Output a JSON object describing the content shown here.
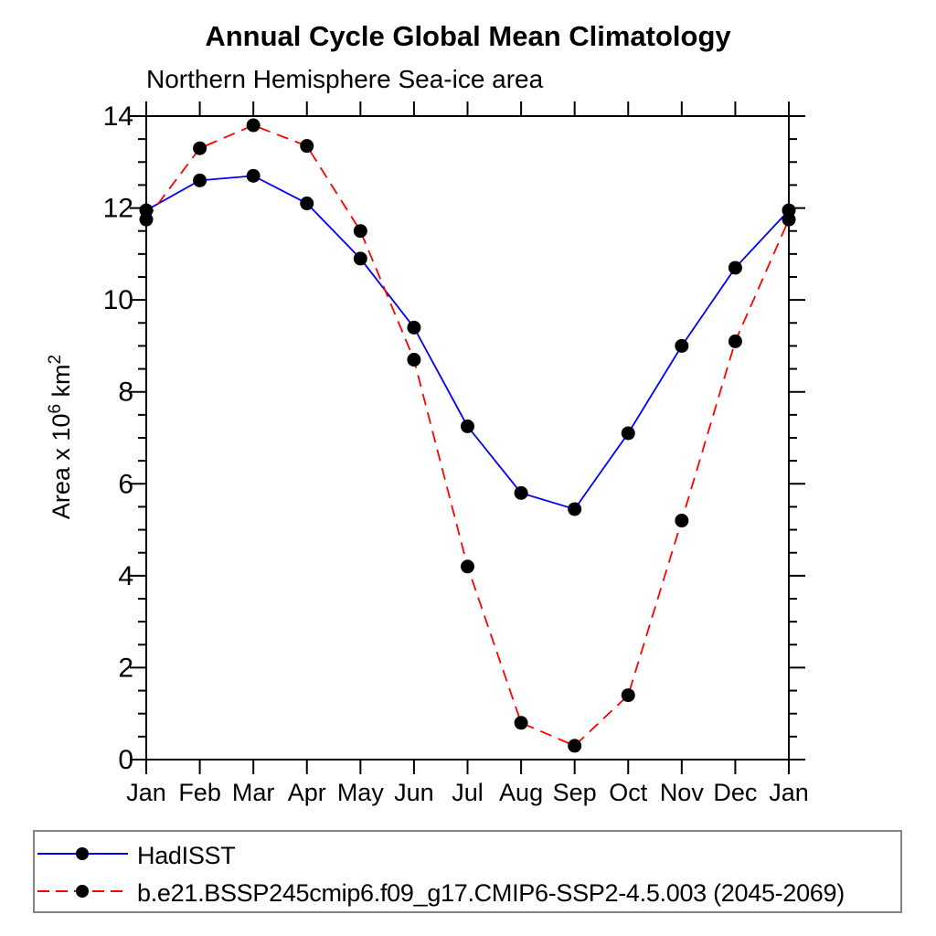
{
  "header": {
    "title": "Annual Cycle Global Mean Climatology",
    "subtitle": "Northern Hemisphere Sea-ice area"
  },
  "chart_data": {
    "type": "line",
    "title": "Annual Cycle Global Mean Climatology",
    "subtitle": "Northern Hemisphere Sea-ice area",
    "categories": [
      "Jan",
      "Feb",
      "Mar",
      "Apr",
      "May",
      "Jun",
      "Jul",
      "Aug",
      "Sep",
      "Oct",
      "Nov",
      "Dec",
      "Jan"
    ],
    "series": [
      {
        "slug": "hadisst",
        "name": "HadISST",
        "color": "#0000ff",
        "style": "solid",
        "values": [
          11.95,
          12.6,
          12.7,
          12.1,
          10.9,
          9.4,
          7.25,
          5.8,
          5.45,
          7.1,
          9.0,
          10.7,
          11.95
        ]
      },
      {
        "slug": "ssp245-model",
        "name": "b.e21.BSSP245cmip6.f09_g17.CMIP6-SSP2-4.5.003 (2045-2069)",
        "color": "#ff0000",
        "style": "dashed",
        "values": [
          11.75,
          13.3,
          13.8,
          13.35,
          11.5,
          8.7,
          4.2,
          0.8,
          0.3,
          1.4,
          5.2,
          9.1,
          11.75
        ]
      }
    ],
    "marker": {
      "shape": "circle",
      "color": "#000000",
      "radius": 7.5
    },
    "ylabel_parts": {
      "base1": "Area x 10",
      "sup1": "6",
      "base2": " km",
      "sup2": "2"
    },
    "ylim": [
      0,
      14
    ],
    "ytick_major_step": 2,
    "ytick_minor_step": 0.5,
    "y_tick_labels": [
      "0",
      "2",
      "4",
      "6",
      "8",
      "10",
      "12",
      "14"
    ],
    "grid": "off",
    "legend_position": "bottom-left-box",
    "colors": {
      "axis": "#000000",
      "text": "#000000",
      "legend_border": "#858585",
      "background": "#ffffff"
    }
  }
}
